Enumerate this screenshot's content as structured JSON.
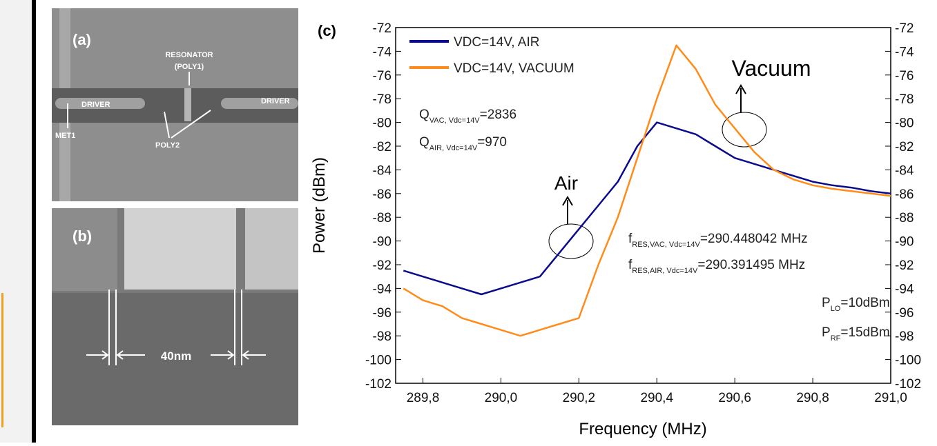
{
  "panels": {
    "a": {
      "label": "(a)",
      "resonator": "RESONATOR",
      "poly1": "(POLY1)",
      "driver_left": "DRIVER",
      "driver_right": "DRIVER",
      "met1": "MET1",
      "poly2": "POLY2"
    },
    "b": {
      "label": "(b)",
      "gap": "40nm"
    }
  },
  "chart_data": {
    "type": "line",
    "panel_label": "(c)",
    "x_label": "Frequency (MHz)",
    "y_label": "Power (dBm)",
    "x": [
      289.75,
      289.8,
      289.85,
      289.9,
      289.95,
      290.0,
      290.05,
      290.1,
      290.15,
      290.2,
      290.25,
      290.3,
      290.35,
      290.4,
      290.45,
      290.5,
      290.55,
      290.6,
      290.65,
      290.7,
      290.75,
      290.8,
      290.85,
      290.9,
      290.95,
      291.0
    ],
    "series": [
      {
        "name": "VDC=14V, AIR",
        "color": "#0a0a8c",
        "values": [
          -92.5,
          -93,
          -93.5,
          -94,
          -94.5,
          -94,
          -93.5,
          -93,
          -91,
          -89,
          -87,
          -85,
          -82,
          -80,
          -80.5,
          -81,
          -82,
          -83,
          -83.5,
          -84,
          -84.5,
          -85,
          -85.3,
          -85.5,
          -85.8,
          -86
        ]
      },
      {
        "name": "VDC=14V, VACUUM",
        "color": "#ff8c1a",
        "values": [
          -94,
          -95,
          -95.5,
          -96.5,
          -97,
          -97.5,
          -98,
          -97.5,
          -97,
          -96.5,
          -92,
          -88,
          -83,
          -78,
          -73.5,
          -75.5,
          -78.5,
          -80.5,
          -82.5,
          -84,
          -84.8,
          -85.3,
          -85.6,
          -85.8,
          -86,
          -86.2
        ]
      }
    ],
    "xlim": [
      289.73,
      291.0
    ],
    "xticks": [
      {
        "value": 289.8,
        "label": "289,8"
      },
      {
        "value": 290.0,
        "label": "290,0"
      },
      {
        "value": 290.2,
        "label": "290,2"
      },
      {
        "value": 290.4,
        "label": "290,4"
      },
      {
        "value": 290.6,
        "label": "290,6"
      },
      {
        "value": 290.8,
        "label": "290,8"
      },
      {
        "value": 291.0,
        "label": "291,0"
      }
    ],
    "ylim": [
      -102,
      -72
    ],
    "yticks": [
      -102,
      -100,
      -98,
      -96,
      -94,
      -92,
      -90,
      -88,
      -86,
      -84,
      -82,
      -80,
      -78,
      -76,
      -74,
      -72
    ],
    "y2lim": [
      -102,
      -72
    ],
    "y2ticks": [
      -102,
      -100,
      -98,
      -96,
      -94,
      -92,
      -90,
      -88,
      -86,
      -84,
      -82,
      -80,
      -78,
      -76,
      -74,
      -72
    ],
    "annotations": [
      {
        "main": "Q",
        "sub": "VAC, Vdc=14V",
        "rest": "=2836"
      },
      {
        "main": "Q",
        "sub": "AIR, Vdc=14V",
        "rest": "=970"
      },
      {
        "main": "f",
        "sub": "RES,VAC, Vdc=14V",
        "rest": "=290.448042 MHz"
      },
      {
        "main": "f",
        "sub": "RES,AIR, Vdc=14V",
        "rest": "=290.391495 MHz"
      },
      {
        "main": "P",
        "sub": "LO",
        "rest": "=10dBm"
      },
      {
        "main": "P",
        "sub": "RF",
        "rest": "=15dBm"
      }
    ],
    "markers": [
      "Air",
      "Vacuum"
    ]
  }
}
